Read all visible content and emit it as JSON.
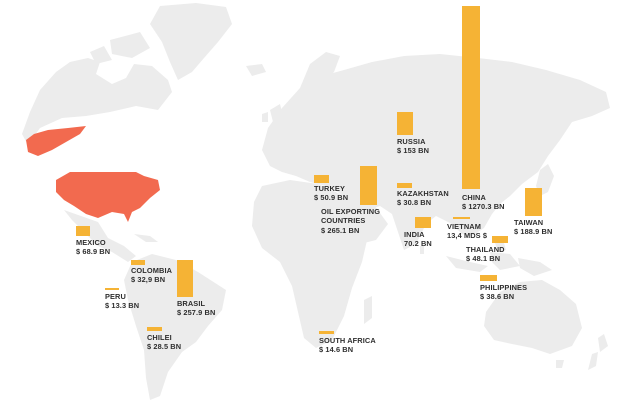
{
  "colors": {
    "land": "#ececec",
    "highlight_country": "#f26a4f",
    "bar": "#f5b335",
    "text": "#2e2e2e"
  },
  "highlighted_country": "United States",
  "chart_data": {
    "type": "bar",
    "title": "",
    "unit_note": "bar height proportional to value, values in billions",
    "categories": [
      "MEXICO",
      "COLOMBIA",
      "PERU",
      "BRASIL",
      "CHILEI",
      "SOUTH AFRICA",
      "TURKEY",
      "OIL EXPORTING COUNTRIES",
      "RUSSIA",
      "KAZAKHSTAN",
      "INDIA",
      "CHINA",
      "VIETNAM",
      "THAILAND",
      "PHILIPPINES",
      "TAIWAN"
    ],
    "values": [
      68.9,
      32.9,
      13.3,
      257.9,
      28.5,
      14.6,
      50.9,
      265.1,
      153,
      30.8,
      70.2,
      1270.3,
      13.4,
      48.1,
      38.6,
      188.9
    ]
  },
  "markers": [
    {
      "name": "MEXICO",
      "value_label": "$ 68.9 BN"
    },
    {
      "name": "COLOMBIA",
      "value_label": "$ 32,9 BN"
    },
    {
      "name": "PERU",
      "value_label": "$ 13.3 BN"
    },
    {
      "name": "BRASIL",
      "value_label": "$ 257.9 BN"
    },
    {
      "name": "CHILEI",
      "value_label": "$ 28.5 BN"
    },
    {
      "name": "SOUTH AFRICA",
      "value_label": "$ 14.6 BN"
    },
    {
      "name": "TURKEY",
      "value_label": "$ 50.9 BN"
    },
    {
      "name": "OIL EXPORTING",
      "name2": "COUNTRIES",
      "value_label": "$ 265.1 BN"
    },
    {
      "name": "RUSSIA",
      "value_label": "$ 153 BN"
    },
    {
      "name": "KAZAKHSTAN",
      "value_label": "$ 30.8 BN"
    },
    {
      "name": "INDIA",
      "value_label": "70.2 BN"
    },
    {
      "name": "CHINA",
      "value_label": "$ 1270.3 BN"
    },
    {
      "name": "VIETNAM",
      "value_label": "13,4 MDS $"
    },
    {
      "name": "THAILAND",
      "value_label": "$ 48.1 BN"
    },
    {
      "name": "PHILIPPINES",
      "value_label": "$ 38.6 BN"
    },
    {
      "name": "TAIWAN",
      "value_label": "$ 188.9 BN"
    }
  ]
}
